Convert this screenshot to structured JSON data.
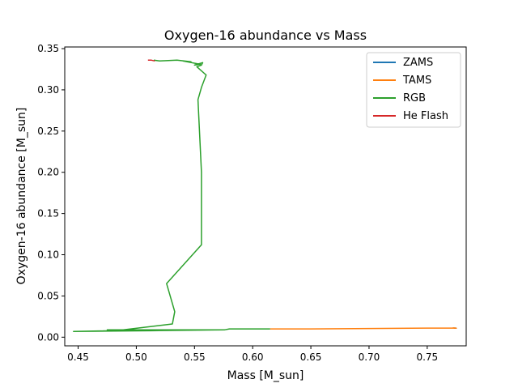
{
  "chart_data": {
    "type": "line",
    "title": "Oxygen-16 abundance vs Mass",
    "xlabel": "Mass [M_sun]",
    "ylabel": "Oxygen-16 abundance [M_sun]",
    "xlim": [
      0.4385,
      0.7835
    ],
    "ylim": [
      -0.0105,
      0.352
    ],
    "xticks": [
      0.45,
      0.5,
      0.55,
      0.6,
      0.65,
      0.7,
      0.75
    ],
    "xtick_labels": [
      "0.45",
      "0.50",
      "0.55",
      "0.60",
      "0.65",
      "0.70",
      "0.75"
    ],
    "yticks": [
      0.0,
      0.05,
      0.1,
      0.15,
      0.2,
      0.25,
      0.3,
      0.35
    ],
    "ytick_labels": [
      "0.00",
      "0.05",
      "0.10",
      "0.15",
      "0.20",
      "0.25",
      "0.30",
      "0.35"
    ],
    "grid": false,
    "legend_position": "top-right",
    "series": [
      {
        "name": "ZAMS",
        "color": "#1f77b4",
        "x": [
          0.773,
          0.775
        ],
        "y": [
          0.011,
          0.011
        ]
      },
      {
        "name": "TAMS",
        "color": "#ff7f0e",
        "x": [
          0.615,
          0.65,
          0.7,
          0.75,
          0.772,
          0.775,
          0.772
        ],
        "y": [
          0.01,
          0.01,
          0.0105,
          0.011,
          0.011,
          0.0108,
          0.0112
        ]
      },
      {
        "name": "RGB",
        "color": "#2ca02c",
        "x": [
          0.615,
          0.58,
          0.576,
          0.5,
          0.446,
          0.52,
          0.475,
          0.576,
          0.48,
          0.531,
          0.533,
          0.526,
          0.556,
          0.556,
          0.553,
          0.556,
          0.56,
          0.552,
          0.556,
          0.557,
          0.55,
          0.555,
          0.54,
          0.547,
          0.535,
          0.52,
          0.515
        ],
        "y": [
          0.01,
          0.01,
          0.009,
          0.0085,
          0.007,
          0.008,
          0.009,
          0.009,
          0.0075,
          0.016,
          0.031,
          0.065,
          0.112,
          0.2,
          0.288,
          0.303,
          0.318,
          0.328,
          0.33,
          0.333,
          0.33,
          0.331,
          0.335,
          0.334,
          0.336,
          0.335,
          0.336
        ]
      },
      {
        "name": "He Flash",
        "color": "#d62728",
        "x": [
          0.51,
          0.513,
          0.516
        ],
        "y": [
          0.336,
          0.336,
          0.335
        ]
      }
    ]
  }
}
